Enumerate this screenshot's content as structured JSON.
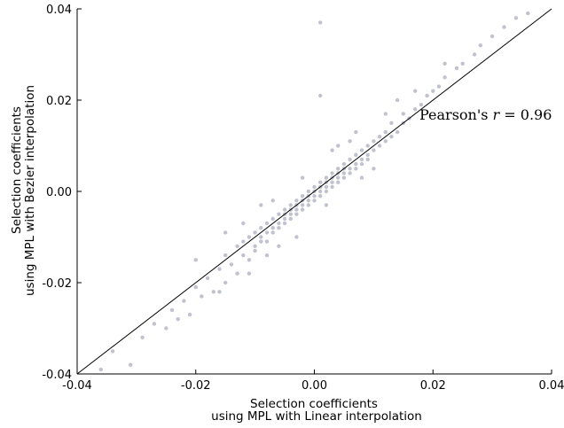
{
  "chart_data": {
    "type": "scatter",
    "title": "",
    "xlabel_line1": "Selection coefficients",
    "xlabel_line2": "using MPL with Linear interpolation",
    "ylabel_line1": "Selection coefficients",
    "ylabel_line2": "using MPL with Bezier interpolation",
    "xlim": [
      -0.04,
      0.04
    ],
    "ylim": [
      -0.04,
      0.04
    ],
    "x_ticks": [
      -0.04,
      -0.02,
      0.0,
      0.02,
      0.04
    ],
    "y_ticks": [
      -0.04,
      -0.02,
      0.0,
      0.02,
      0.04
    ],
    "x_tick_labels": [
      "-0.04",
      "-0.02",
      "0.00",
      "0.02",
      "0.04"
    ],
    "y_tick_labels": [
      "-0.04",
      "-0.02",
      "0.00",
      "0.02",
      "0.04"
    ],
    "grid": false,
    "reference_line": {
      "from": [
        -0.04,
        -0.04
      ],
      "to": [
        0.04,
        0.04
      ]
    },
    "annotation": {
      "prefix": "Pearson's ",
      "var": "r",
      "eq": " = 0.96"
    },
    "point_color": "#1f2352",
    "points": [
      [
        -0.036,
        -0.039
      ],
      [
        -0.034,
        -0.035
      ],
      [
        -0.031,
        -0.038
      ],
      [
        -0.029,
        -0.032
      ],
      [
        -0.027,
        -0.029
      ],
      [
        -0.025,
        -0.03
      ],
      [
        -0.024,
        -0.026
      ],
      [
        -0.022,
        -0.024
      ],
      [
        -0.021,
        -0.027
      ],
      [
        -0.02,
        -0.021
      ],
      [
        -0.019,
        -0.023
      ],
      [
        -0.018,
        -0.019
      ],
      [
        -0.017,
        -0.022
      ],
      [
        -0.016,
        -0.017
      ],
      [
        -0.015,
        -0.02
      ],
      [
        -0.015,
        -0.014
      ],
      [
        -0.014,
        -0.016
      ],
      [
        -0.013,
        -0.018
      ],
      [
        -0.013,
        -0.012
      ],
      [
        -0.012,
        -0.014
      ],
      [
        -0.012,
        -0.011
      ],
      [
        -0.011,
        -0.015
      ],
      [
        -0.011,
        -0.01
      ],
      [
        -0.01,
        -0.012
      ],
      [
        -0.01,
        -0.009
      ],
      [
        -0.01,
        -0.013
      ],
      [
        -0.009,
        -0.011
      ],
      [
        -0.009,
        -0.008
      ],
      [
        -0.009,
        -0.01
      ],
      [
        -0.008,
        -0.009
      ],
      [
        -0.008,
        -0.007
      ],
      [
        -0.008,
        -0.011
      ],
      [
        -0.007,
        -0.008
      ],
      [
        -0.007,
        -0.006
      ],
      [
        -0.007,
        -0.009
      ],
      [
        -0.006,
        -0.007
      ],
      [
        -0.006,
        -0.005
      ],
      [
        -0.006,
        -0.008
      ],
      [
        -0.005,
        -0.006
      ],
      [
        -0.005,
        -0.004
      ],
      [
        -0.005,
        -0.007
      ],
      [
        -0.005,
        -0.005
      ],
      [
        -0.004,
        -0.005
      ],
      [
        -0.004,
        -0.003
      ],
      [
        -0.004,
        -0.006
      ],
      [
        -0.004,
        -0.004
      ],
      [
        -0.003,
        -0.004
      ],
      [
        -0.003,
        -0.002
      ],
      [
        -0.003,
        -0.005
      ],
      [
        -0.003,
        -0.003
      ],
      [
        -0.002,
        -0.003
      ],
      [
        -0.002,
        -0.001
      ],
      [
        -0.002,
        -0.004
      ],
      [
        -0.002,
        -0.002
      ],
      [
        -0.001,
        -0.002
      ],
      [
        -0.001,
        -0.001
      ],
      [
        -0.001,
        -0.003
      ],
      [
        -0.001,
        0.0
      ],
      [
        0.0,
        -0.001
      ],
      [
        0.0,
        0.0
      ],
      [
        0.0,
        0.001
      ],
      [
        0.0,
        -0.002
      ],
      [
        0.001,
        0.0
      ],
      [
        0.001,
        0.001
      ],
      [
        0.001,
        0.002
      ],
      [
        0.001,
        -0.001
      ],
      [
        0.002,
        0.001
      ],
      [
        0.002,
        0.002
      ],
      [
        0.002,
        0.003
      ],
      [
        0.002,
        0.0
      ],
      [
        0.003,
        0.002
      ],
      [
        0.003,
        0.003
      ],
      [
        0.003,
        0.004
      ],
      [
        0.003,
        0.001
      ],
      [
        0.004,
        0.003
      ],
      [
        0.004,
        0.004
      ],
      [
        0.004,
        0.005
      ],
      [
        0.004,
        0.002
      ],
      [
        0.005,
        0.004
      ],
      [
        0.005,
        0.006
      ],
      [
        0.005,
        0.003
      ],
      [
        0.005,
        0.005
      ],
      [
        0.006,
        0.005
      ],
      [
        0.006,
        0.007
      ],
      [
        0.006,
        0.004
      ],
      [
        0.007,
        0.006
      ],
      [
        0.007,
        0.008
      ],
      [
        0.007,
        0.005
      ],
      [
        0.008,
        0.007
      ],
      [
        0.008,
        0.009
      ],
      [
        0.008,
        0.006
      ],
      [
        0.009,
        0.008
      ],
      [
        0.009,
        0.01
      ],
      [
        0.009,
        0.007
      ],
      [
        0.01,
        0.009
      ],
      [
        0.01,
        0.011
      ],
      [
        0.011,
        0.01
      ],
      [
        0.011,
        0.012
      ],
      [
        0.012,
        0.011
      ],
      [
        0.012,
        0.013
      ],
      [
        0.013,
        0.012
      ],
      [
        0.013,
        0.015
      ],
      [
        0.014,
        0.013
      ],
      [
        0.015,
        0.015
      ],
      [
        0.015,
        0.017
      ],
      [
        0.016,
        0.016
      ],
      [
        0.017,
        0.018
      ],
      [
        0.018,
        0.019
      ],
      [
        0.019,
        0.021
      ],
      [
        0.02,
        0.022
      ],
      [
        0.021,
        0.023
      ],
      [
        0.022,
        0.025
      ],
      [
        0.024,
        0.027
      ],
      [
        0.025,
        0.028
      ],
      [
        0.027,
        0.03
      ],
      [
        0.028,
        0.032
      ],
      [
        0.03,
        0.034
      ],
      [
        0.032,
        0.036
      ],
      [
        0.034,
        0.038
      ],
      [
        0.036,
        0.039
      ],
      [
        -0.008,
        -0.014
      ],
      [
        -0.012,
        -0.007
      ],
      [
        0.007,
        0.013
      ],
      [
        0.01,
        0.005
      ],
      [
        -0.003,
        -0.01
      ],
      [
        0.004,
        0.01
      ],
      [
        -0.015,
        -0.009
      ],
      [
        0.014,
        0.02
      ],
      [
        -0.02,
        -0.015
      ],
      [
        0.001,
        0.021
      ],
      [
        0.001,
        0.037
      ],
      [
        -0.006,
        -0.012
      ],
      [
        0.006,
        0.011
      ],
      [
        -0.011,
        -0.018
      ],
      [
        0.012,
        0.017
      ],
      [
        -0.002,
        0.003
      ],
      [
        0.002,
        -0.003
      ],
      [
        -0.007,
        -0.002
      ],
      [
        0.008,
        0.003
      ],
      [
        -0.016,
        -0.022
      ],
      [
        0.017,
        0.022
      ],
      [
        -0.023,
        -0.028
      ],
      [
        0.022,
        0.028
      ],
      [
        -0.009,
        -0.003
      ],
      [
        0.003,
        0.009
      ]
    ]
  }
}
